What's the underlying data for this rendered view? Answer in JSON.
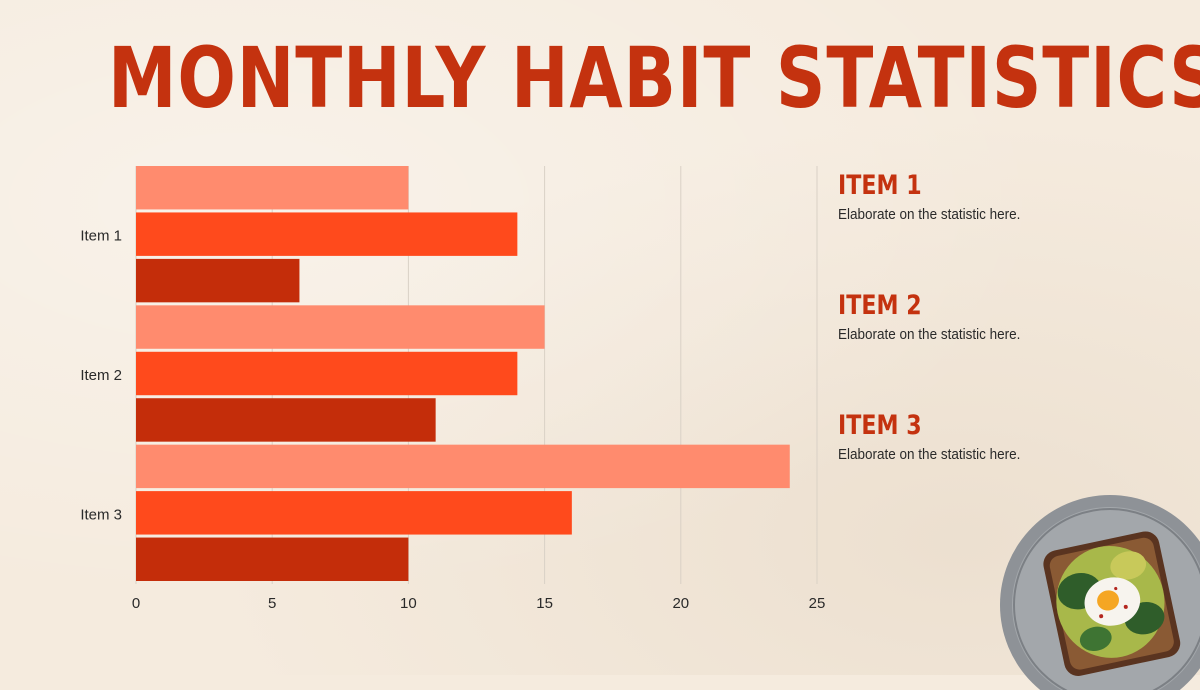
{
  "page": {
    "title": "MONTHLY HABIT STATISTICS"
  },
  "colors": {
    "title": "#c4320f",
    "background": "#f5ebde"
  },
  "chart_data": {
    "type": "bar",
    "orientation": "horizontal",
    "categories": [
      "Item 1",
      "Item 2",
      "Item 3"
    ],
    "series": [
      {
        "values": [
          10,
          15,
          24
        ],
        "color": "#ff8b6e"
      },
      {
        "values": [
          14,
          14,
          16
        ],
        "color": "#ff4a1c"
      },
      {
        "values": [
          6,
          11,
          10
        ],
        "color": "#c42d0a"
      }
    ],
    "xlim": [
      0,
      25
    ],
    "x_ticks": [
      0,
      5,
      10,
      15,
      20,
      25
    ],
    "grid": true,
    "legend": "none"
  },
  "legend_panel": [
    {
      "title": "ITEM 1",
      "description": "Elaborate on the statistic here."
    },
    {
      "title": "ITEM 2",
      "description": "Elaborate on the statistic here."
    },
    {
      "title": "ITEM 3",
      "description": "Elaborate on the statistic here."
    }
  ],
  "image": {
    "icon": "avocado-toast-plate-photo"
  }
}
